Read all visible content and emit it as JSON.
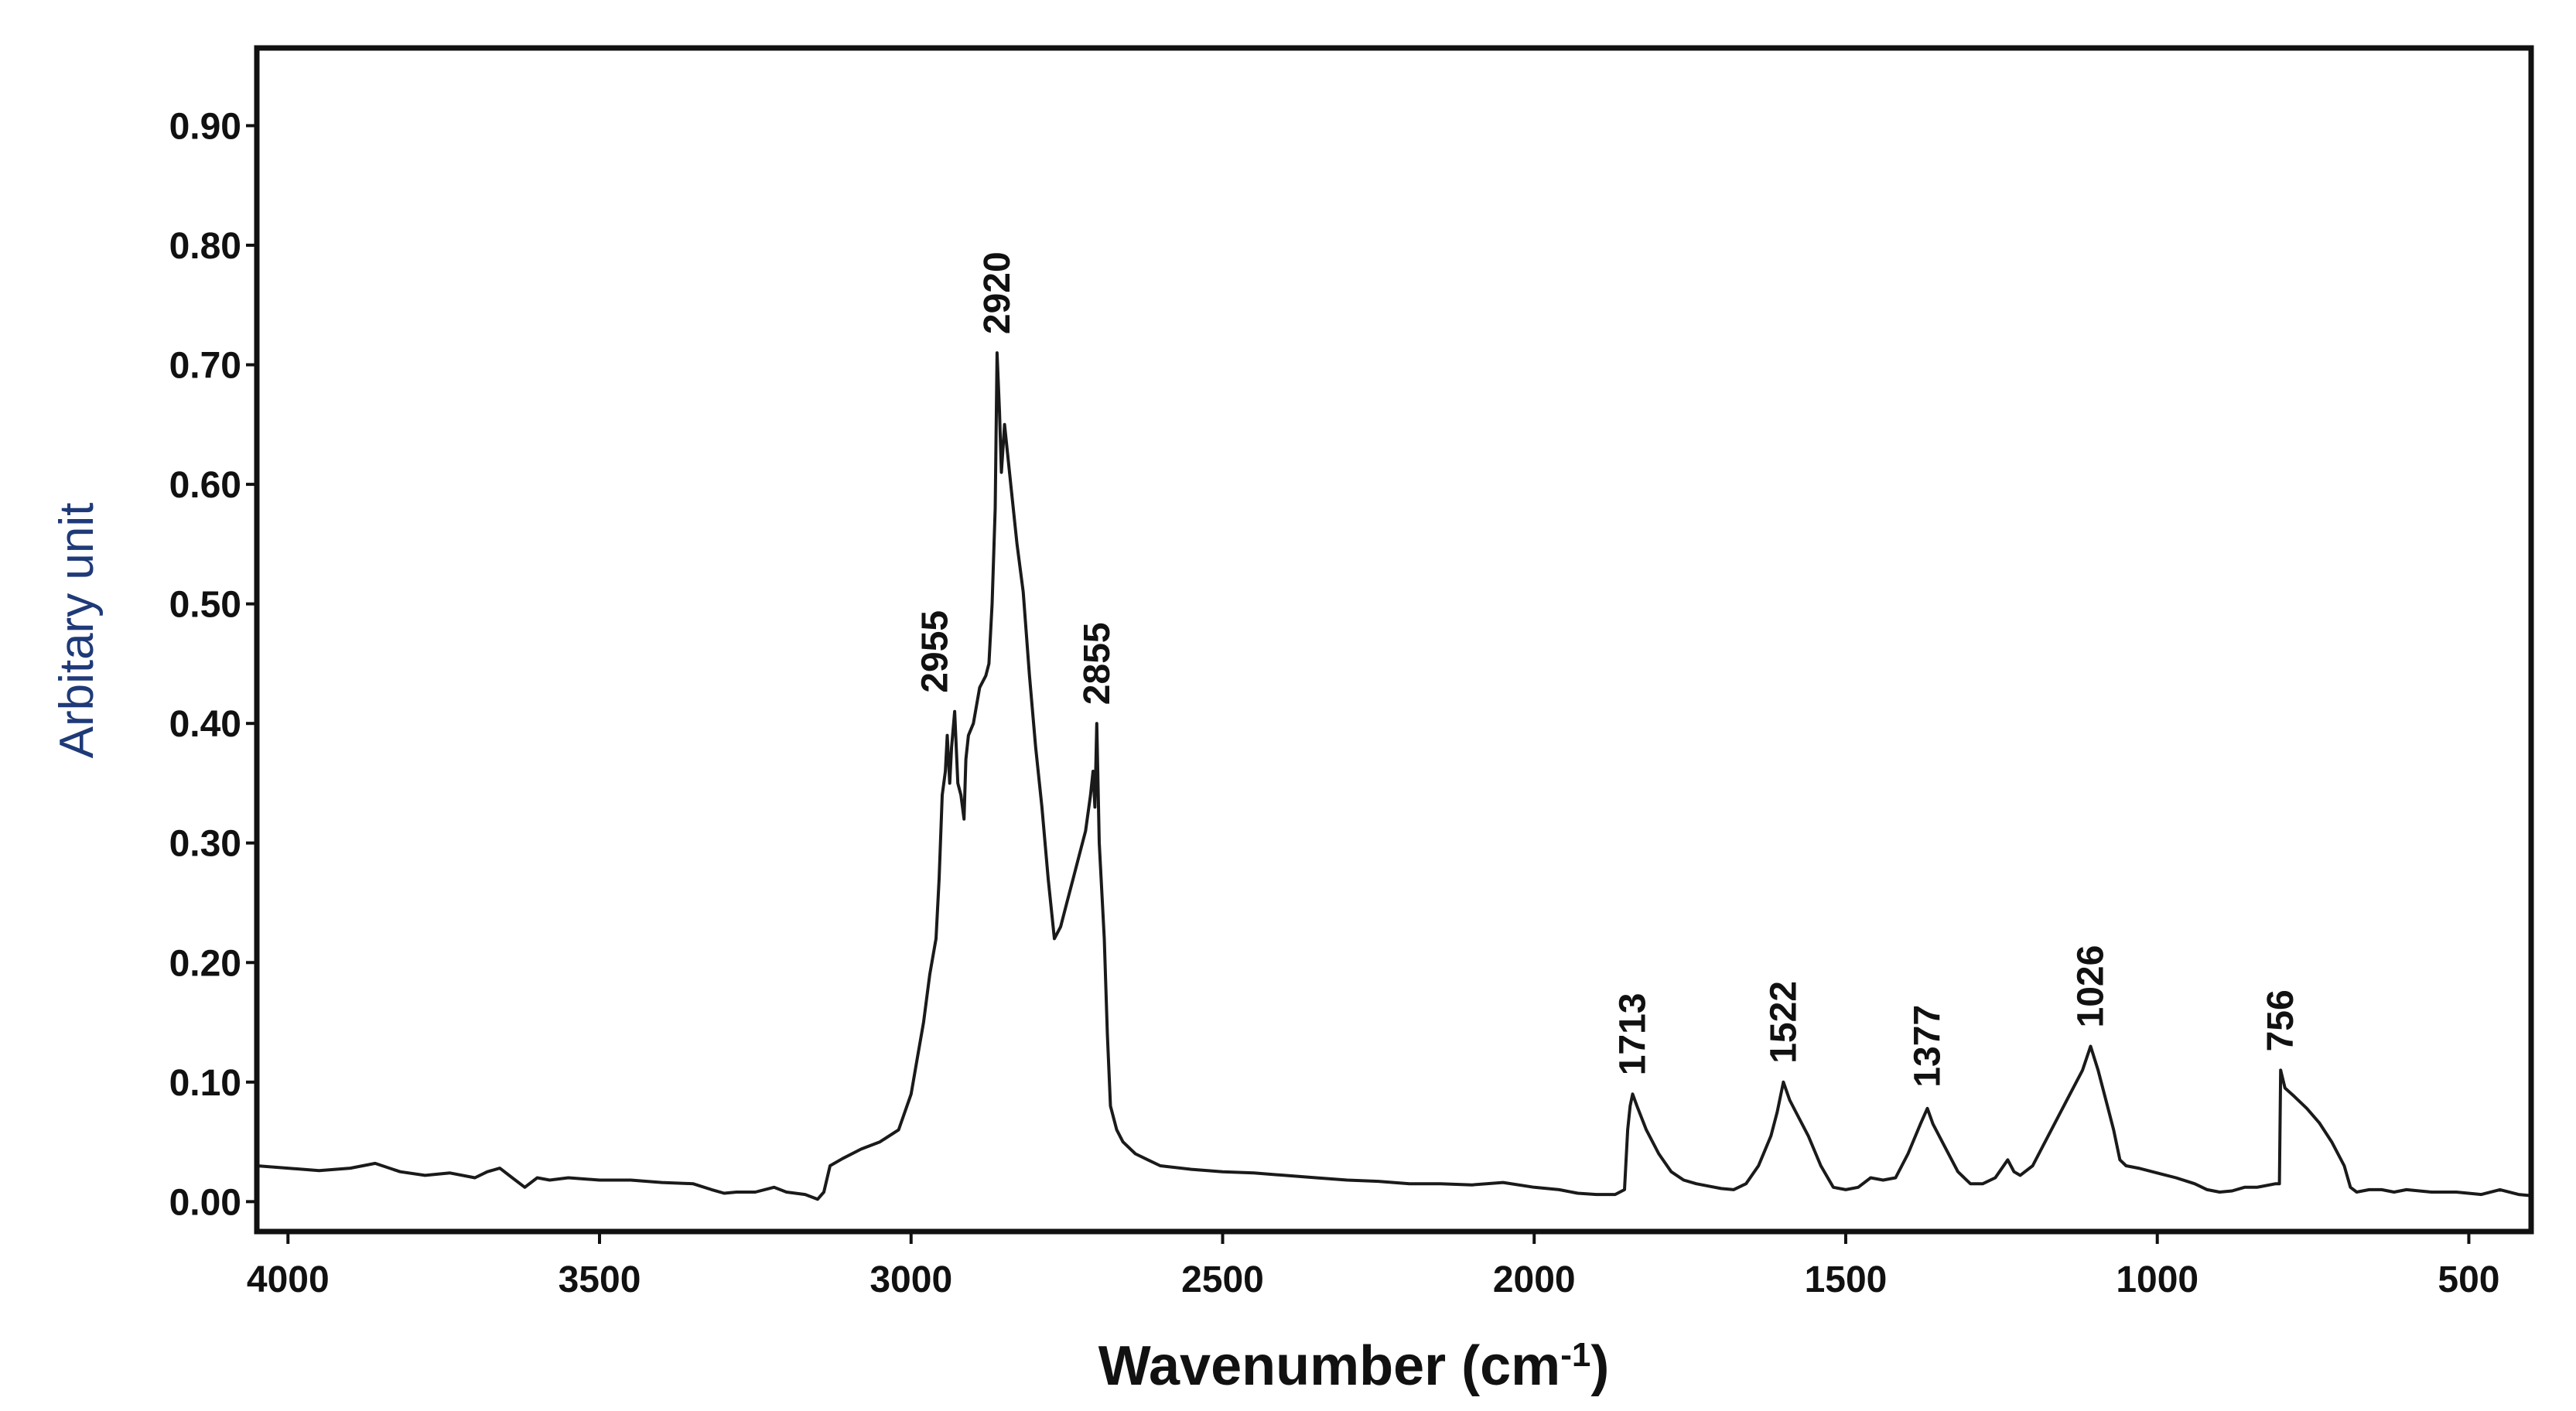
{
  "chart_data": {
    "type": "line",
    "title": "",
    "xlabel": "Wavenumber (cm",
    "xlabel_superscript": "-1",
    "xlabel_close": ")",
    "ylabel": "Arbitary unit",
    "xlim": [
      4050,
      400
    ],
    "ylim": [
      -0.025,
      0.965
    ],
    "x_reversed": true,
    "grid": false,
    "legend": "none",
    "colors": {
      "line": "#1a1a1a",
      "ylabel": "#1f3a78",
      "frame": "#111111"
    },
    "x_ticks": [
      {
        "value": 4000,
        "label": "4000"
      },
      {
        "value": 3500,
        "label": "3500"
      },
      {
        "value": 3000,
        "label": "3000"
      },
      {
        "value": 2500,
        "label": "2500"
      },
      {
        "value": 2000,
        "label": "2000"
      },
      {
        "value": 1500,
        "label": "1500"
      },
      {
        "value": 1000,
        "label": "1000"
      },
      {
        "value": 500,
        "label": "500"
      }
    ],
    "y_ticks": [
      {
        "value": 0.0,
        "label": "0.00"
      },
      {
        "value": 0.1,
        "label": "0.10"
      },
      {
        "value": 0.2,
        "label": "0.20"
      },
      {
        "value": 0.3,
        "label": "0.30"
      },
      {
        "value": 0.4,
        "label": "0.40"
      },
      {
        "value": 0.5,
        "label": "0.50"
      },
      {
        "value": 0.6,
        "label": "0.60"
      },
      {
        "value": 0.7,
        "label": "0.70"
      },
      {
        "value": 0.8,
        "label": "0.80"
      },
      {
        "value": 0.9,
        "label": "0.90"
      }
    ],
    "annotations": [
      {
        "text": "2955",
        "x": 2962,
        "y": 0.41
      },
      {
        "text": "2920",
        "x": 2862,
        "y": 0.71
      },
      {
        "text": "2855",
        "x": 2702,
        "y": 0.4
      },
      {
        "text": "1713",
        "x": 1842,
        "y": 0.09
      },
      {
        "text": "1522",
        "x": 1600,
        "y": 0.1
      },
      {
        "text": "1377",
        "x": 1369,
        "y": 0.08
      },
      {
        "text": "1026",
        "x": 1107,
        "y": 0.13
      },
      {
        "text": "756",
        "x": 802,
        "y": 0.11
      }
    ],
    "series": [
      {
        "points": [
          [
            4050,
            0.03
          ],
          [
            4000,
            0.028
          ],
          [
            3950,
            0.026
          ],
          [
            3900,
            0.028
          ],
          [
            3860,
            0.032
          ],
          [
            3820,
            0.025
          ],
          [
            3780,
            0.022
          ],
          [
            3740,
            0.024
          ],
          [
            3700,
            0.02
          ],
          [
            3680,
            0.025
          ],
          [
            3660,
            0.028
          ],
          [
            3640,
            0.02
          ],
          [
            3620,
            0.012
          ],
          [
            3600,
            0.02
          ],
          [
            3580,
            0.018
          ],
          [
            3550,
            0.02
          ],
          [
            3500,
            0.018
          ],
          [
            3450,
            0.018
          ],
          [
            3400,
            0.016
          ],
          [
            3350,
            0.015
          ],
          [
            3320,
            0.01
          ],
          [
            3300,
            0.007
          ],
          [
            3280,
            0.008
          ],
          [
            3250,
            0.008
          ],
          [
            3220,
            0.012
          ],
          [
            3200,
            0.008
          ],
          [
            3170,
            0.006
          ],
          [
            3150,
            0.002
          ],
          [
            3140,
            0.008
          ],
          [
            3130,
            0.03
          ],
          [
            3110,
            0.036
          ],
          [
            3080,
            0.044
          ],
          [
            3050,
            0.05
          ],
          [
            3020,
            0.06
          ],
          [
            3010,
            0.075
          ],
          [
            3000,
            0.09
          ],
          [
            2990,
            0.12
          ],
          [
            2980,
            0.15
          ],
          [
            2970,
            0.19
          ],
          [
            2960,
            0.22
          ],
          [
            2955,
            0.27
          ],
          [
            2950,
            0.34
          ],
          [
            2945,
            0.36
          ],
          [
            2942,
            0.39
          ],
          [
            2938,
            0.35
          ],
          [
            2935,
            0.38
          ],
          [
            2930,
            0.41
          ],
          [
            2925,
            0.35
          ],
          [
            2920,
            0.34
          ],
          [
            2915,
            0.32
          ],
          [
            2912,
            0.37
          ],
          [
            2908,
            0.39
          ],
          [
            2900,
            0.4
          ],
          [
            2890,
            0.43
          ],
          [
            2880,
            0.44
          ],
          [
            2875,
            0.45
          ],
          [
            2870,
            0.5
          ],
          [
            2865,
            0.58
          ],
          [
            2862,
            0.71
          ],
          [
            2858,
            0.66
          ],
          [
            2855,
            0.61
          ],
          [
            2850,
            0.65
          ],
          [
            2840,
            0.6
          ],
          [
            2830,
            0.55
          ],
          [
            2820,
            0.51
          ],
          [
            2810,
            0.44
          ],
          [
            2800,
            0.38
          ],
          [
            2790,
            0.33
          ],
          [
            2780,
            0.27
          ],
          [
            2770,
            0.22
          ],
          [
            2760,
            0.23
          ],
          [
            2750,
            0.25
          ],
          [
            2740,
            0.27
          ],
          [
            2730,
            0.29
          ],
          [
            2720,
            0.31
          ],
          [
            2712,
            0.34
          ],
          [
            2708,
            0.36
          ],
          [
            2705,
            0.33
          ],
          [
            2702,
            0.4
          ],
          [
            2698,
            0.3
          ],
          [
            2690,
            0.22
          ],
          [
            2685,
            0.14
          ],
          [
            2680,
            0.08
          ],
          [
            2670,
            0.06
          ],
          [
            2660,
            0.05
          ],
          [
            2640,
            0.04
          ],
          [
            2620,
            0.035
          ],
          [
            2600,
            0.03
          ],
          [
            2550,
            0.027
          ],
          [
            2500,
            0.025
          ],
          [
            2450,
            0.024
          ],
          [
            2400,
            0.022
          ],
          [
            2350,
            0.02
          ],
          [
            2300,
            0.018
          ],
          [
            2250,
            0.017
          ],
          [
            2200,
            0.015
          ],
          [
            2150,
            0.015
          ],
          [
            2100,
            0.014
          ],
          [
            2050,
            0.016
          ],
          [
            2000,
            0.012
          ],
          [
            1960,
            0.01
          ],
          [
            1930,
            0.007
          ],
          [
            1900,
            0.006
          ],
          [
            1870,
            0.006
          ],
          [
            1855,
            0.01
          ],
          [
            1850,
            0.06
          ],
          [
            1846,
            0.08
          ],
          [
            1842,
            0.09
          ],
          [
            1835,
            0.08
          ],
          [
            1820,
            0.06
          ],
          [
            1800,
            0.04
          ],
          [
            1780,
            0.025
          ],
          [
            1760,
            0.018
          ],
          [
            1740,
            0.015
          ],
          [
            1720,
            0.013
          ],
          [
            1700,
            0.011
          ],
          [
            1680,
            0.01
          ],
          [
            1660,
            0.015
          ],
          [
            1640,
            0.03
          ],
          [
            1620,
            0.055
          ],
          [
            1610,
            0.075
          ],
          [
            1600,
            0.1
          ],
          [
            1590,
            0.085
          ],
          [
            1580,
            0.075
          ],
          [
            1560,
            0.055
          ],
          [
            1540,
            0.03
          ],
          [
            1520,
            0.012
          ],
          [
            1500,
            0.01
          ],
          [
            1480,
            0.012
          ],
          [
            1460,
            0.02
          ],
          [
            1440,
            0.018
          ],
          [
            1420,
            0.02
          ],
          [
            1400,
            0.04
          ],
          [
            1380,
            0.065
          ],
          [
            1369,
            0.078
          ],
          [
            1360,
            0.065
          ],
          [
            1340,
            0.045
          ],
          [
            1320,
            0.025
          ],
          [
            1300,
            0.015
          ],
          [
            1280,
            0.015
          ],
          [
            1260,
            0.02
          ],
          [
            1240,
            0.035
          ],
          [
            1230,
            0.025
          ],
          [
            1220,
            0.022
          ],
          [
            1200,
            0.03
          ],
          [
            1180,
            0.05
          ],
          [
            1160,
            0.07
          ],
          [
            1140,
            0.09
          ],
          [
            1120,
            0.11
          ],
          [
            1107,
            0.13
          ],
          [
            1095,
            0.11
          ],
          [
            1080,
            0.08
          ],
          [
            1070,
            0.06
          ],
          [
            1060,
            0.035
          ],
          [
            1050,
            0.03
          ],
          [
            1030,
            0.028
          ],
          [
            1000,
            0.024
          ],
          [
            970,
            0.02
          ],
          [
            940,
            0.015
          ],
          [
            920,
            0.01
          ],
          [
            900,
            0.008
          ],
          [
            880,
            0.009
          ],
          [
            860,
            0.012
          ],
          [
            840,
            0.012
          ],
          [
            810,
            0.015
          ],
          [
            804,
            0.015
          ],
          [
            802,
            0.11
          ],
          [
            795,
            0.095
          ],
          [
            780,
            0.088
          ],
          [
            760,
            0.078
          ],
          [
            740,
            0.066
          ],
          [
            720,
            0.05
          ],
          [
            700,
            0.03
          ],
          [
            690,
            0.012
          ],
          [
            680,
            0.008
          ],
          [
            660,
            0.01
          ],
          [
            640,
            0.01
          ],
          [
            620,
            0.008
          ],
          [
            600,
            0.01
          ],
          [
            560,
            0.008
          ],
          [
            520,
            0.008
          ],
          [
            480,
            0.006
          ],
          [
            450,
            0.01
          ],
          [
            420,
            0.006
          ],
          [
            400,
            0.005
          ]
        ]
      }
    ]
  }
}
